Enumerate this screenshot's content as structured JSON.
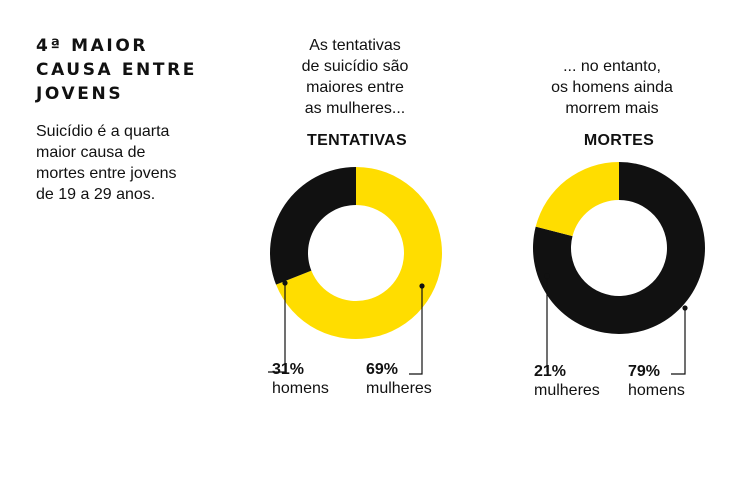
{
  "heading_lines": [
    "4ª MAIOR",
    "CAUSA ENTRE",
    "JOVENS"
  ],
  "intro_lines": [
    "Suicídio é a quarta",
    "maior causa de",
    "mortes entre jovens",
    "de 19 a 29 anos."
  ],
  "colors": {
    "yellow": "#FFDD00",
    "black": "#111111"
  },
  "chart_data": [
    {
      "type": "pie",
      "title": "TENTATIVAS",
      "caption_lines": [
        "As tentativas",
        "de suicídio são",
        "maiores entre",
        "as mulheres..."
      ],
      "slices": [
        {
          "label": "mulheres",
          "value": 69,
          "value_label": "69%",
          "color": "#FFDD00"
        },
        {
          "label": "homens",
          "value": 31,
          "value_label": "31%",
          "color": "#111111"
        }
      ]
    },
    {
      "type": "pie",
      "title": "MORTES",
      "caption_lines": [
        "... no entanto,",
        "os homens ainda",
        "morrem mais"
      ],
      "slices": [
        {
          "label": "homens",
          "value": 79,
          "value_label": "79%",
          "color": "#111111"
        },
        {
          "label": "mulheres",
          "value": 21,
          "value_label": "21%",
          "color": "#FFDD00"
        }
      ]
    }
  ]
}
